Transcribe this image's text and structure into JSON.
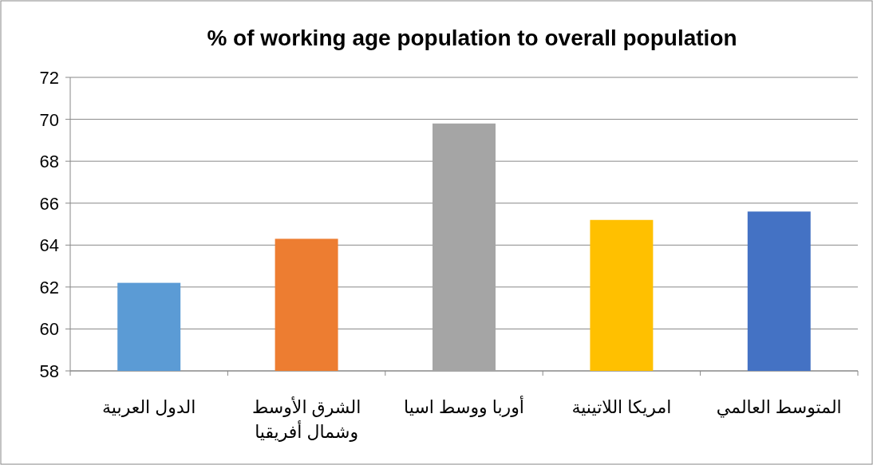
{
  "chart_data": {
    "type": "bar",
    "title": "% of working age population to overall population",
    "categories": [
      "الدول العربية",
      "الشرق الأوسط وشمال أفريقيا",
      "أوربا ووسط اسيا",
      "امريكا اللاتينية",
      "المتوسط العالمي"
    ],
    "values": [
      62.2,
      64.3,
      69.8,
      65.2,
      65.6
    ],
    "colors": [
      "#5b9bd5",
      "#ed7d31",
      "#a5a5a5",
      "#ffc000",
      "#4472c4"
    ],
    "ylim": [
      58,
      72
    ],
    "yticks": [
      58,
      60,
      62,
      64,
      66,
      68,
      70,
      72
    ],
    "grid": "y"
  }
}
